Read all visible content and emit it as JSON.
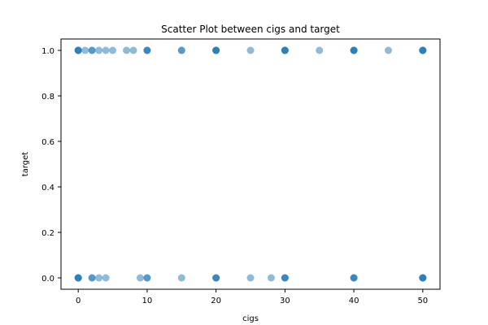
{
  "chart_data": {
    "type": "scatter",
    "title": "Scatter Plot between cigs and target",
    "xlabel": "cigs",
    "ylabel": "target",
    "xlim": [
      -2.5,
      52.5
    ],
    "ylim": [
      -0.05,
      1.05
    ],
    "xticks": [
      0,
      10,
      20,
      30,
      40,
      50
    ],
    "yticks": [
      0.0,
      0.2,
      0.4,
      0.6,
      0.8,
      1.0
    ],
    "xtick_labels": [
      "0",
      "10",
      "20",
      "30",
      "40",
      "50"
    ],
    "ytick_labels": [
      "0.0",
      "0.2",
      "0.4",
      "0.6",
      "0.8",
      "1.0"
    ],
    "grid": false,
    "legend": "none",
    "marker_color": "#1f77b4",
    "marker_alpha": 0.5,
    "series": [
      {
        "x": [
          0,
          0,
          0,
          0,
          1,
          2,
          2,
          3,
          4,
          5,
          7,
          8,
          10,
          10,
          10,
          15,
          15,
          20,
          20,
          20,
          20,
          25,
          30,
          30,
          30,
          30,
          35,
          40,
          40,
          40,
          40,
          45,
          50,
          50,
          50,
          50,
          0,
          0,
          0,
          0,
          2,
          2,
          3,
          4,
          9,
          10,
          10,
          15,
          20,
          20,
          20,
          25,
          28,
          30,
          30,
          30,
          40,
          40,
          40,
          50,
          50,
          50,
          50
        ],
        "y": [
          1,
          1,
          1,
          1,
          1,
          1,
          1,
          1,
          1,
          1,
          1,
          1,
          1,
          1,
          1,
          1,
          1,
          1,
          1,
          1,
          1,
          1,
          1,
          1,
          1,
          1,
          1,
          1,
          1,
          1,
          1,
          1,
          1,
          1,
          1,
          1,
          0,
          0,
          0,
          0,
          0,
          0,
          0,
          0,
          0,
          0,
          0,
          0,
          0,
          0,
          0,
          0,
          0,
          0,
          0,
          0,
          0,
          0,
          0,
          0,
          0,
          0,
          0
        ]
      }
    ]
  }
}
